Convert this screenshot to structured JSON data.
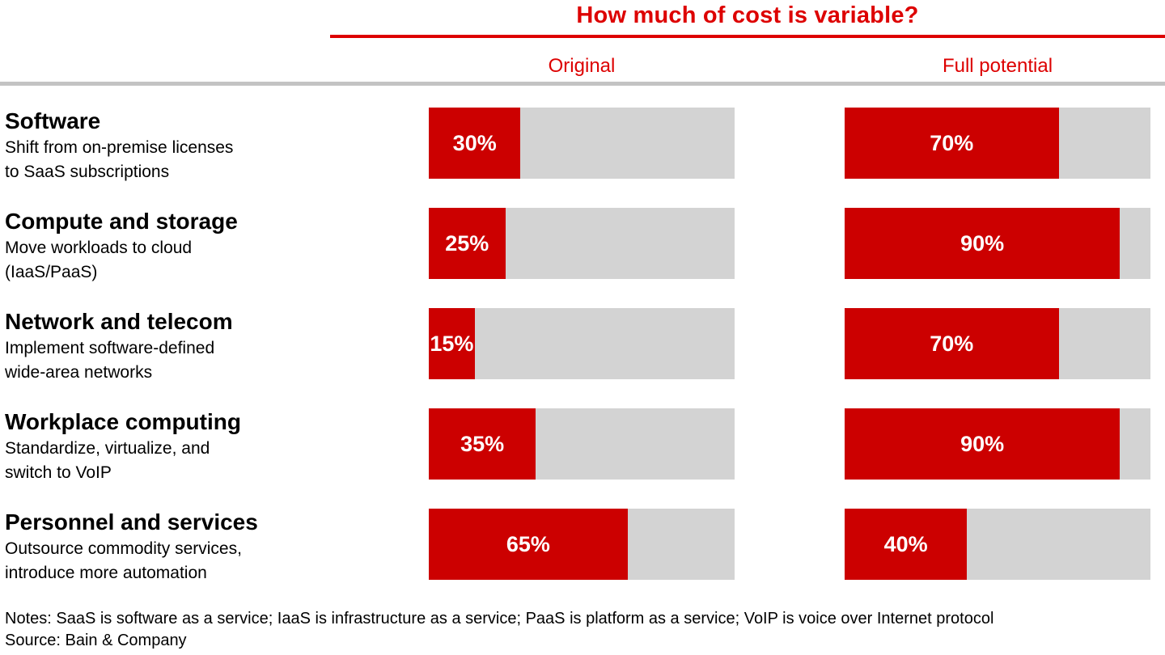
{
  "title": "How much of cost is variable?",
  "notes": "Notes: SaaS is software as a service; IaaS is infrastructure as a service; PaaS is platform as a service; VoIP is voice over Internet protocol",
  "source": "Source: Bain & Company",
  "colors": {
    "bar_red": "#cc0000",
    "accent_red": "#dd0000",
    "track_gray": "#d3d3d3",
    "separator_gray": "#c3c3c3"
  },
  "chart_data": {
    "type": "bar",
    "orientation": "horizontal",
    "title": "How much of cost is variable?",
    "unit": "%",
    "xlim": [
      0,
      100
    ],
    "grid": false,
    "legend_position": "column-headers-top",
    "categories": [
      "Software",
      "Compute and storage",
      "Network and telecom",
      "Workplace computing",
      "Personnel and services"
    ],
    "category_descriptions": [
      [
        "Shift from on-premise licenses",
        "to SaaS subscriptions"
      ],
      [
        "Move workloads to cloud",
        "(IaaS/PaaS)"
      ],
      [
        "Implement software-defined",
        "wide-area networks"
      ],
      [
        "Standardize, virtualize, and",
        "switch to VoIP"
      ],
      [
        "Outsource commodity services,",
        "introduce more automation"
      ]
    ],
    "series": [
      {
        "name": "Original",
        "values": [
          30,
          25,
          15,
          35,
          65
        ]
      },
      {
        "name": "Full potential",
        "values": [
          70,
          90,
          70,
          90,
          40
        ]
      }
    ]
  }
}
